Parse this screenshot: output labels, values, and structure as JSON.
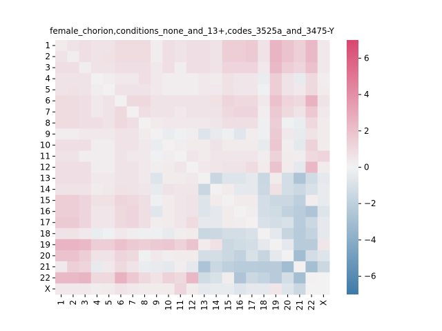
{
  "chart_data": {
    "type": "heatmap",
    "title": "female_chorion,conditions_none_and_13+,codes_3525a_and_3475-Y",
    "xlabel": "",
    "ylabel": "",
    "x_labels": [
      "1",
      "2",
      "3",
      "4",
      "5",
      "6",
      "7",
      "8",
      "9",
      "10",
      "11",
      "12",
      "13",
      "14",
      "15",
      "16",
      "17",
      "18",
      "19",
      "20",
      "21",
      "22",
      "X"
    ],
    "y_labels": [
      "1",
      "2",
      "3",
      "4",
      "5",
      "6",
      "7",
      "8",
      "9",
      "10",
      "11",
      "12",
      "13",
      "14",
      "15",
      "16",
      "17",
      "18",
      "19",
      "20",
      "21",
      "22",
      "X"
    ],
    "colorbar": {
      "min": -7,
      "max": 7,
      "ticks": [
        -6,
        -4,
        -2,
        0,
        2,
        4,
        6
      ],
      "low_color": "#3d7aa8",
      "mid_color": "#f2f2f2",
      "high_color": "#d9456f"
    },
    "values": [
      [
        0.3,
        0.6,
        0.8,
        0.6,
        0.6,
        0.9,
        0.9,
        0.9,
        0.2,
        0.8,
        0.6,
        0.8,
        0.8,
        0.6,
        1.5,
        1.5,
        1.6,
        0.6,
        2.5,
        1.9,
        1.4,
        2.3,
        0.4
      ],
      [
        0.6,
        0.2,
        0.8,
        0.6,
        0.7,
        0.9,
        0.9,
        0.9,
        0.2,
        0.8,
        0.6,
        0.8,
        0.8,
        0.6,
        1.5,
        1.5,
        1.6,
        0.6,
        2.5,
        1.9,
        1.4,
        2.3,
        0.4
      ],
      [
        0.8,
        0.8,
        0.2,
        0.6,
        0.6,
        0.8,
        0.8,
        0.8,
        0.4,
        0.8,
        0.2,
        0.8,
        0.8,
        0.6,
        1.2,
        1.2,
        1.2,
        0.4,
        2.3,
        1.5,
        1.2,
        2.0,
        0.4
      ],
      [
        0.6,
        0.6,
        0.6,
        0.1,
        0.2,
        0.4,
        0.4,
        0.8,
        0.4,
        0.2,
        0.2,
        0.2,
        0.4,
        0.3,
        0.7,
        0.5,
        0.5,
        -0.3,
        1.5,
        0.6,
        -0.4,
        1.0,
        0.2
      ],
      [
        0.6,
        0.7,
        0.6,
        0.2,
        0.1,
        0.6,
        0.6,
        0.6,
        0.4,
        0.2,
        0.2,
        0.2,
        0.4,
        0.4,
        0.7,
        0.5,
        0.5,
        -0.1,
        1.5,
        0.6,
        0.4,
        1.0,
        0.3
      ],
      [
        0.9,
        0.9,
        0.8,
        0.4,
        0.6,
        0.1,
        1.0,
        1.0,
        0.6,
        0.6,
        0.6,
        0.6,
        0.6,
        0.7,
        1.2,
        1.0,
        1.0,
        0.4,
        2.0,
        1.2,
        1.0,
        2.6,
        0.6
      ],
      [
        0.9,
        0.9,
        0.8,
        0.4,
        0.6,
        1.0,
        0.1,
        0.8,
        0.6,
        0.6,
        0.4,
        0.6,
        0.6,
        0.6,
        1.0,
        1.2,
        1.2,
        0.2,
        1.6,
        1.0,
        0.6,
        1.7,
        0.4
      ],
      [
        0.9,
        0.9,
        0.8,
        0.8,
        0.6,
        1.0,
        0.8,
        0.1,
        0.3,
        0.4,
        0.4,
        0.4,
        0.4,
        0.5,
        0.8,
        0.8,
        0.8,
        -0.2,
        1.5,
        -0.1,
        -0.3,
        1.0,
        0.3
      ],
      [
        0.2,
        0.2,
        0.4,
        0.4,
        0.4,
        0.6,
        0.6,
        0.3,
        0.1,
        -0.3,
        -0.1,
        0.2,
        -0.8,
        -0.4,
        -0.2,
        -0.7,
        0.2,
        -0.2,
        1.6,
        0.4,
        -0.4,
        0.6,
        0.3
      ],
      [
        0.8,
        0.8,
        0.8,
        0.2,
        0.2,
        0.6,
        0.6,
        0.4,
        -0.3,
        0.1,
        0.2,
        0.3,
        0.3,
        0.6,
        0.3,
        0.3,
        0.3,
        -0.4,
        1.8,
        0.2,
        -0.5,
        1.3,
        0.3
      ],
      [
        0.6,
        0.6,
        0.2,
        0.2,
        0.2,
        0.6,
        0.4,
        0.4,
        -0.1,
        0.2,
        0.1,
        0.5,
        0.3,
        0.5,
        0.5,
        0.5,
        0.5,
        0.2,
        1.3,
        0.3,
        0.2,
        1.0,
        1.2
      ],
      [
        0.8,
        0.8,
        0.8,
        0.2,
        0.2,
        0.6,
        0.6,
        0.4,
        0.2,
        0.3,
        0.5,
        0.1,
        0.4,
        0.5,
        0.6,
        0.6,
        0.9,
        0.3,
        1.9,
        0.3,
        -0.5,
        2.4,
        0.3
      ],
      [
        0.8,
        0.8,
        0.8,
        0.4,
        0.4,
        0.6,
        0.6,
        0.4,
        -0.8,
        0.3,
        0.3,
        0.4,
        0.1,
        -1.6,
        -0.8,
        -0.8,
        -0.5,
        -1.6,
        0.3,
        -1.2,
        -2.7,
        -1.3,
        -0.5
      ],
      [
        0.6,
        0.6,
        0.6,
        0.3,
        0.4,
        0.7,
        0.6,
        0.5,
        -0.4,
        0.6,
        0.5,
        0.5,
        -1.6,
        0.1,
        0.3,
        -0.5,
        -0.5,
        -1.5,
        0.7,
        -1.2,
        -1.5,
        -1.0,
        -0.4
      ],
      [
        1.5,
        1.5,
        1.2,
        0.7,
        0.7,
        1.2,
        1.0,
        0.8,
        -0.2,
        0.3,
        0.5,
        0.6,
        -0.8,
        0.3,
        0.1,
        0.3,
        0.3,
        -1.2,
        -1.5,
        -1.5,
        -2.0,
        0.2,
        -0.4
      ],
      [
        1.5,
        1.5,
        1.2,
        0.5,
        0.5,
        1.0,
        1.2,
        0.8,
        -0.7,
        0.3,
        0.5,
        0.6,
        -0.8,
        -0.5,
        0.3,
        0.1,
        0.2,
        -1.2,
        -1.3,
        -1.9,
        -2.2,
        -2.6,
        -0.8
      ],
      [
        1.6,
        1.6,
        1.2,
        0.5,
        0.5,
        1.0,
        1.2,
        0.8,
        0.2,
        0.3,
        0.5,
        0.9,
        -0.5,
        -0.5,
        0.3,
        0.2,
        0.1,
        -1.0,
        -1.2,
        -1.0,
        -2.2,
        -1.5,
        -0.5
      ],
      [
        0.6,
        0.6,
        0.4,
        -0.3,
        -0.1,
        0.4,
        0.2,
        -0.2,
        -0.2,
        -0.4,
        0.2,
        0.3,
        -1.6,
        -1.5,
        -1.2,
        -1.2,
        -1.0,
        0.1,
        -0.5,
        -1.7,
        -2.3,
        -1.8,
        -0.5
      ],
      [
        2.5,
        2.5,
        2.3,
        1.5,
        1.5,
        2.0,
        1.6,
        1.5,
        1.6,
        1.8,
        1.3,
        1.9,
        0.3,
        0.7,
        -1.5,
        -1.3,
        -1.2,
        -0.5,
        0.1,
        -0.5,
        -2.3,
        -2.3,
        0.5
      ],
      [
        1.9,
        1.9,
        1.5,
        0.6,
        0.6,
        1.2,
        1.0,
        -0.1,
        0.4,
        0.2,
        0.3,
        0.3,
        -1.2,
        -1.2,
        -1.5,
        -1.9,
        -1.0,
        -1.7,
        -0.5,
        0.1,
        -3.1,
        -1.2,
        -0.8
      ],
      [
        0.4,
        1.4,
        1.2,
        -0.4,
        0.4,
        1.0,
        0.6,
        -0.3,
        -0.4,
        -0.5,
        0.2,
        -0.5,
        -2.7,
        -1.5,
        -2.0,
        -2.2,
        -2.2,
        -2.3,
        -2.3,
        -3.1,
        0.1,
        -3.0,
        -1.5
      ],
      [
        2.3,
        2.3,
        2.5,
        1.0,
        1.0,
        2.6,
        1.7,
        1.0,
        0.6,
        1.3,
        1.0,
        2.4,
        -1.3,
        -1.0,
        0.2,
        -2.6,
        -1.5,
        -1.8,
        -2.3,
        -1.2,
        -3.0,
        0.1,
        0.0
      ],
      [
        0.4,
        0.4,
        0.4,
        0.2,
        0.3,
        0.6,
        0.4,
        0.3,
        0.3,
        0.3,
        1.2,
        0.3,
        -0.5,
        -0.4,
        -0.4,
        -0.8,
        -0.5,
        -0.5,
        0.5,
        -0.8,
        -1.5,
        0.0,
        0.0
      ]
    ]
  }
}
